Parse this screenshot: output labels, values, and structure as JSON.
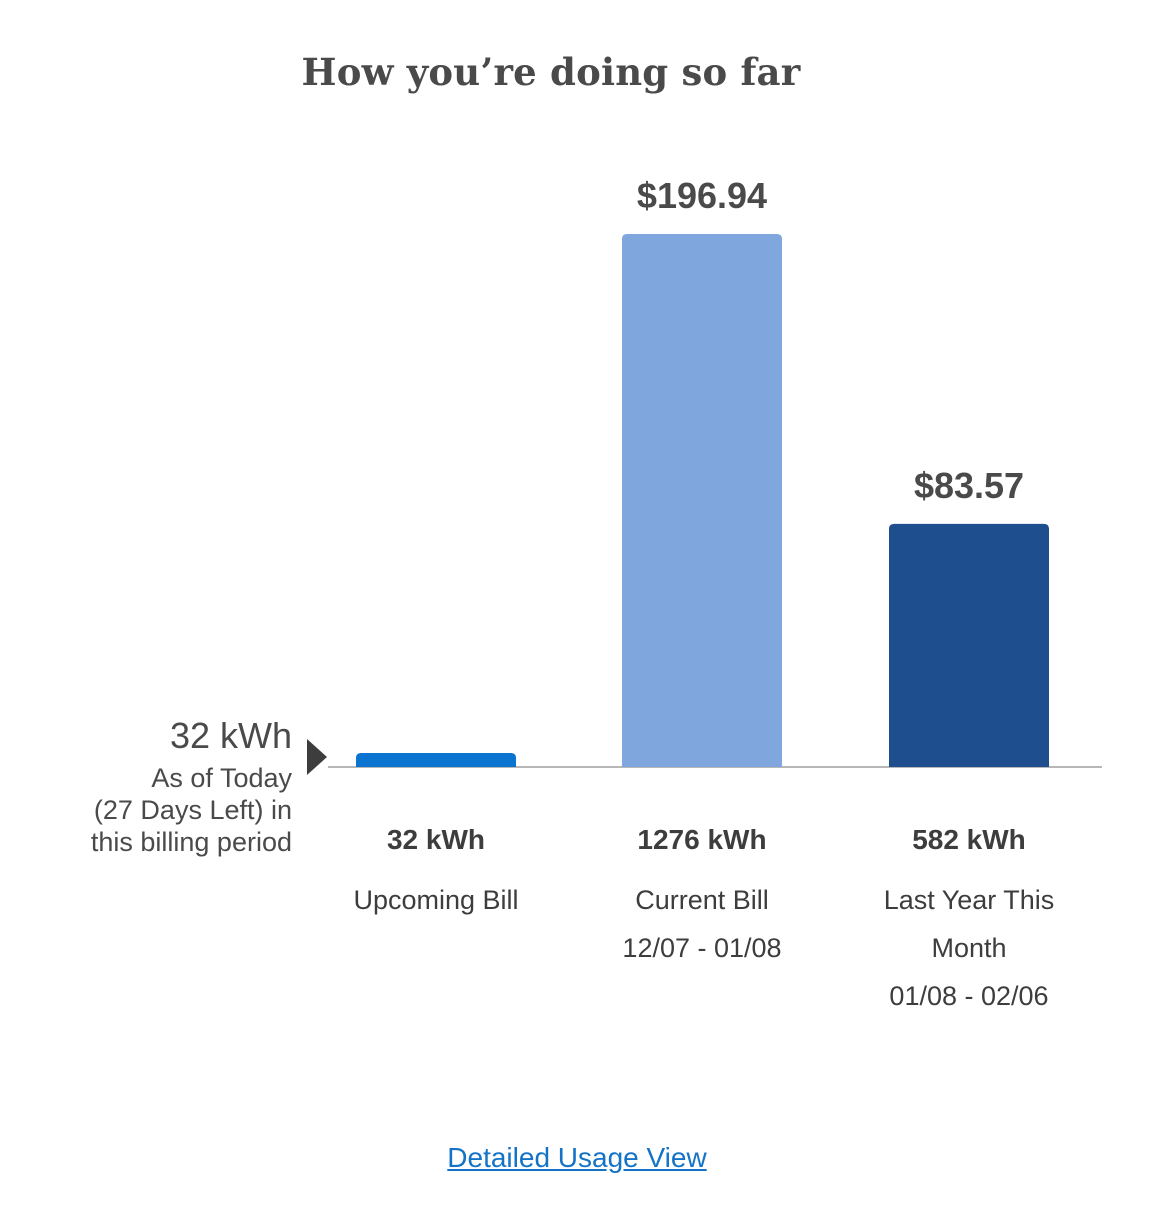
{
  "title": "How you’re doing so far",
  "today": {
    "value": "32 kWh",
    "line1": "As of Today",
    "line2": "(27 Days Left) in",
    "line3": "this billing period"
  },
  "columns": [
    {
      "kwh": "32 kWh",
      "name": "Upcoming Bill",
      "name2": "",
      "period": ""
    },
    {
      "kwh": "1276 kWh",
      "name": "Current Bill",
      "name2": "",
      "period": "12/07 - 01/08"
    },
    {
      "kwh": "582 kWh",
      "name": "Last Year This",
      "name2": "Month",
      "period": "01/08 - 02/06"
    }
  ],
  "link": {
    "label": "Detailed Usage View"
  },
  "chart_data": {
    "type": "bar",
    "categories": [
      "Upcoming Bill",
      "Current Bill",
      "Last Year This Month"
    ],
    "values": [
      32,
      1276,
      582
    ],
    "unit": "kWh",
    "cost_labels": [
      "",
      "$196.94",
      "$83.57"
    ],
    "colors": [
      "#0b74d1",
      "#7fa6dd",
      "#1f4e8f"
    ],
    "axis_color": "#b7b7b7",
    "label_color": "#4a4a4a"
  }
}
